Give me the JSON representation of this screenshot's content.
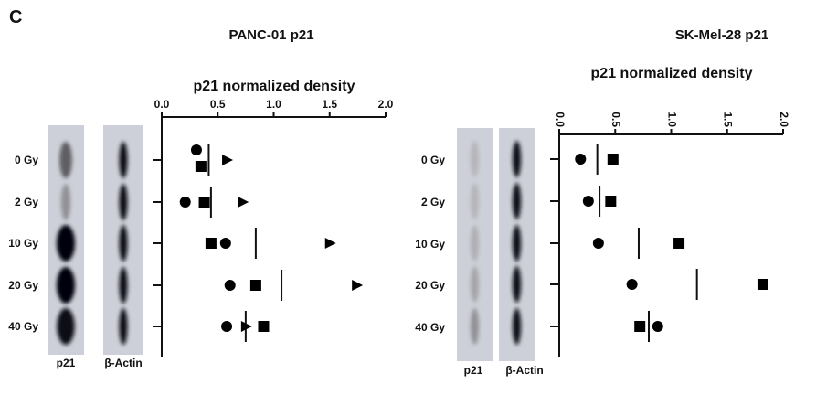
{
  "panel_label": "C",
  "chart_data": [
    {
      "type": "scatter",
      "title": "PANC-01 p21",
      "xlabel": "p21 normalized density",
      "xlim": [
        0,
        2.0
      ],
      "xticks": [
        "0.0",
        "0.5",
        "1.0",
        "1.5",
        "2.0"
      ],
      "categories": [
        "0 Gy",
        "2 Gy",
        "10 Gy",
        "20 Gy",
        "40 Gy"
      ],
      "series": [
        {
          "name": "circle",
          "marker": "circle",
          "values": [
            0.31,
            0.21,
            0.57,
            0.61,
            0.58
          ]
        },
        {
          "name": "square",
          "marker": "square",
          "values": [
            0.35,
            0.38,
            0.44,
            0.84,
            0.91
          ]
        },
        {
          "name": "triangle",
          "marker": "triangle",
          "values": [
            0.58,
            0.72,
            1.5,
            1.74,
            0.75
          ]
        }
      ],
      "mean": [
        0.42,
        0.44,
        0.84,
        1.07,
        0.75
      ],
      "rotated_ticks": false,
      "blot_lanes": [
        {
          "label": "p21",
          "intensity": [
            0.55,
            0.3,
            1.0,
            1.0,
            0.95
          ]
        },
        {
          "label": "β-Actin",
          "intensity": [
            0.95,
            0.95,
            0.95,
            0.95,
            0.95
          ]
        }
      ]
    },
    {
      "type": "scatter",
      "title": "SK-Mel-28 p21",
      "xlabel": "p21 normalized density",
      "xlim": [
        0,
        2.0
      ],
      "xticks": [
        "0.0",
        "0.5",
        "1.0",
        "1.5",
        "2.0"
      ],
      "categories": [
        "0 Gy",
        "2 Gy",
        "10 Gy",
        "20 Gy",
        "40 Gy"
      ],
      "series": [
        {
          "name": "circle",
          "marker": "circle",
          "values": [
            0.19,
            0.26,
            0.35,
            0.65,
            0.88
          ]
        },
        {
          "name": "square",
          "marker": "square",
          "values": [
            0.48,
            0.46,
            1.07,
            1.82,
            0.72
          ]
        }
      ],
      "mean": [
        0.34,
        0.36,
        0.71,
        1.23,
        0.8
      ],
      "rotated_ticks": true,
      "blot_lanes": [
        {
          "label": "p21",
          "intensity": [
            0.12,
            0.12,
            0.15,
            0.2,
            0.3
          ]
        },
        {
          "label": "β-Actin",
          "intensity": [
            0.95,
            0.95,
            0.95,
            0.95,
            0.95
          ]
        }
      ]
    }
  ]
}
